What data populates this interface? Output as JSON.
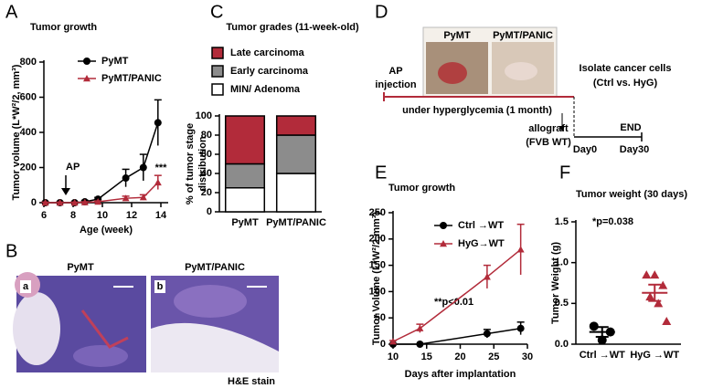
{
  "figure": {
    "panel_labels": [
      "A",
      "B",
      "C",
      "D",
      "E",
      "F"
    ],
    "histology": {
      "images": [
        {
          "title": "PyMT",
          "label": "a"
        },
        {
          "title": "PyMT/PANIC",
          "label": "b"
        }
      ],
      "stain": "H&E stain"
    },
    "schematic": {
      "images": [
        "PyMT",
        "PyMT/PANIC"
      ],
      "injection": [
        "AP",
        "injection"
      ],
      "condition": "under hyperglycemia (1 month)",
      "isolate": [
        "Isolate cancer cells",
        "(Ctrl vs. HyG)"
      ],
      "allograft": [
        "allograft",
        "(FVB WT)"
      ],
      "end": "END",
      "day0": "Day0",
      "day30": "Day30"
    }
  },
  "chart_data": [
    {
      "type": "line",
      "title": "Tumor growth",
      "xlabel": "Age (week)",
      "ylabel": "Tumor volume (L*W²/2, mm³)",
      "xlim": [
        6,
        14.5
      ],
      "xticks": [
        6,
        8,
        10,
        12,
        14
      ],
      "ylim": [
        0,
        800
      ],
      "yticks": [
        0,
        200,
        400,
        600,
        800
      ],
      "legend": "upper left",
      "annotations": [
        "AP",
        "***"
      ],
      "series": [
        {
          "name": "PyMT",
          "color": "#000000",
          "marker": "circle",
          "x": [
            6.1,
            7.1,
            8.1,
            8.8,
            9.7,
            11.6,
            12.8,
            13.8
          ],
          "values": [
            0,
            0,
            0,
            5,
            20,
            140,
            200,
            455
          ],
          "errors": [
            5,
            5,
            5,
            8,
            10,
            50,
            75,
            130
          ]
        },
        {
          "name": "PyMT/PANIC",
          "color": "#b22b3a",
          "marker": "triangle",
          "x": [
            6.1,
            7.1,
            8.1,
            8.8,
            9.7,
            11.6,
            12.8,
            13.8
          ],
          "values": [
            0,
            0,
            0,
            2,
            5,
            25,
            30,
            115
          ],
          "errors": [
            3,
            3,
            3,
            3,
            5,
            12,
            15,
            40
          ]
        }
      ]
    },
    {
      "type": "bar",
      "stacked": true,
      "title": "Tumor grades (11-week-old)",
      "ylabel": [
        "% of tumor stage",
        "distribution"
      ],
      "categories": [
        "PyMT",
        "PyMT/PANIC"
      ],
      "ylim": [
        0,
        100
      ],
      "yticks": [
        0,
        20,
        40,
        60,
        80,
        100
      ],
      "legend": "upper left",
      "series": [
        {
          "name": "MIN/ Adenoma",
          "color": "#ffffff",
          "values": [
            25,
            40
          ]
        },
        {
          "name": "Early carcinoma",
          "color": "#8c8c8c",
          "values": [
            25,
            40
          ]
        },
        {
          "name": "Late carcinoma",
          "color": "#b22b3a",
          "values": [
            50,
            20
          ]
        }
      ]
    },
    {
      "type": "line",
      "title": "Tumor growth",
      "xlabel": "Days after implantation",
      "ylabel": "Tumor Volume (L*W²/2,mm³)",
      "xlim": [
        10,
        30
      ],
      "xticks": [
        10,
        15,
        20,
        25,
        30
      ],
      "ylim": [
        0,
        250
      ],
      "yticks": [
        0,
        50,
        100,
        150,
        200,
        250
      ],
      "legend": "upper left",
      "annotations": [
        "**p<0.01"
      ],
      "series": [
        {
          "name": "Ctrl →WT",
          "color": "#000000",
          "marker": "circle",
          "x": [
            10,
            14,
            24,
            29
          ],
          "values": [
            0,
            0,
            20,
            30
          ],
          "errors": [
            0,
            0,
            8,
            12
          ]
        },
        {
          "name": "HyG→WT",
          "color": "#b22b3a",
          "marker": "triangle",
          "x": [
            10,
            14,
            24,
            29
          ],
          "values": [
            5,
            30,
            128,
            180
          ],
          "errors": [
            2,
            8,
            22,
            48
          ]
        }
      ]
    },
    {
      "type": "scatter",
      "title": "Tumor weight (30 days)",
      "ylabel": "Tumor Weight (g)",
      "categories": [
        "Ctrl →WT",
        "HyG →WT"
      ],
      "colors": [
        "#000000",
        "#b22b3a"
      ],
      "markers": [
        "circle",
        "triangle"
      ],
      "ylim": [
        0,
        1.5
      ],
      "yticks": [
        {
          "value": 0,
          "label": "0.0"
        },
        0.5,
        {
          "value": 1,
          "label": "1.0"
        },
        1.5
      ],
      "annotations": [
        "*p=0.038"
      ],
      "values": [
        [
          0.22,
          0.05,
          0.15
        ],
        [
          0.85,
          0.85,
          0.72,
          0.58,
          0.5,
          0.28
        ]
      ],
      "mean": [
        0.15,
        0.63
      ],
      "sem": [
        0.06,
        0.1
      ]
    }
  ]
}
